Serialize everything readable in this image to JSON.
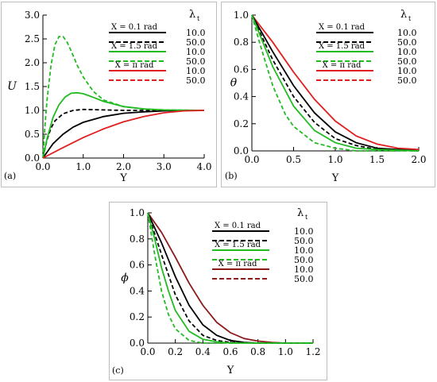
{
  "chart_data": [
    {
      "id": "a",
      "type": "line",
      "panel_label": "(a)",
      "xlabel": "Y",
      "ylabel": "U",
      "xlim": [
        0,
        4
      ],
      "ylim": [
        0,
        3
      ],
      "xticks": [
        "0.0",
        "1.0",
        "2.0",
        "3.0",
        "4.0"
      ],
      "yticks": [
        "0.0",
        "0.5",
        "1.0",
        "1.5",
        "2.0",
        "2.5",
        "3.0"
      ],
      "legend_header": "λ",
      "legend_header_sub": "t",
      "legend": [
        {
          "group": "X = 0.1 rad",
          "value": "10.0",
          "color": "#000000",
          "dash": "solid"
        },
        {
          "group": "",
          "value": "50.0",
          "color": "#000000",
          "dash": "dashed"
        },
        {
          "group": "X = 1.5 rad",
          "value": "10.0",
          "color": "#22bb22",
          "dash": "solid"
        },
        {
          "group": "",
          "value": "50.0",
          "color": "#22bb22",
          "dash": "dashed"
        },
        {
          "group": "X = π rad",
          "value": "10.0",
          "color": "#e02020",
          "dash": "solid"
        },
        {
          "group": "",
          "value": "50.0",
          "color": "#e02020",
          "dash": "dashed"
        }
      ],
      "series": [
        {
          "color": "#000000",
          "dash": "solid",
          "x": [
            0,
            0.25,
            0.5,
            0.75,
            1.0,
            1.5,
            2.0,
            2.5,
            3.0,
            3.5,
            4.0
          ],
          "y": [
            0,
            0.3,
            0.5,
            0.65,
            0.75,
            0.87,
            0.94,
            0.97,
            0.99,
            1.0,
            1.0
          ]
        },
        {
          "color": "#000000",
          "dash": "dashed",
          "x": [
            0,
            0.1,
            0.2,
            0.3,
            0.5,
            0.75,
            1.0,
            1.5,
            2.0,
            3.0,
            4.0
          ],
          "y": [
            0,
            0.38,
            0.63,
            0.78,
            0.93,
            1.0,
            1.02,
            1.01,
            1.0,
            1.0,
            1.0
          ]
        },
        {
          "color": "#22bb22",
          "dash": "solid",
          "x": [
            0,
            0.1,
            0.25,
            0.4,
            0.55,
            0.7,
            0.85,
            1.0,
            1.2,
            1.5,
            2.0,
            2.5,
            3.0,
            4.0
          ],
          "y": [
            0,
            0.4,
            0.85,
            1.12,
            1.28,
            1.36,
            1.37,
            1.35,
            1.29,
            1.19,
            1.08,
            1.03,
            1.01,
            1.0
          ]
        },
        {
          "color": "#22bb22",
          "dash": "dashed",
          "x": [
            0,
            0.05,
            0.1,
            0.2,
            0.3,
            0.4,
            0.5,
            0.6,
            0.7,
            0.85,
            1.0,
            1.25,
            1.5,
            2.0,
            2.5,
            3.0,
            4.0
          ],
          "y": [
            0,
            0.65,
            1.2,
            1.95,
            2.38,
            2.55,
            2.55,
            2.43,
            2.25,
            1.95,
            1.7,
            1.4,
            1.22,
            1.08,
            1.03,
            1.01,
            1.0
          ]
        },
        {
          "color": "#e02020",
          "dash": "solid",
          "x": [
            0,
            0.5,
            1.0,
            1.5,
            2.0,
            2.5,
            3.0,
            3.5,
            4.0
          ],
          "y": [
            0,
            0.22,
            0.43,
            0.61,
            0.76,
            0.87,
            0.95,
            0.99,
            1.0
          ]
        }
      ]
    },
    {
      "id": "b",
      "type": "line",
      "panel_label": "(b)",
      "xlabel": "Y",
      "ylabel": "θ",
      "xlim": [
        0,
        2
      ],
      "ylim": [
        0,
        1
      ],
      "xticks": [
        "0.0",
        "0.5",
        "1.0",
        "1.5",
        "2.0"
      ],
      "yticks": [
        "0.0",
        "0.2",
        "0.4",
        "0.6",
        "0.8",
        "1.0"
      ],
      "legend_header": "λ",
      "legend_header_sub": "t",
      "legend": [
        {
          "group": "X = 0.1 rad",
          "value": "10.0",
          "color": "#000000",
          "dash": "solid"
        },
        {
          "group": "",
          "value": "50.0",
          "color": "#000000",
          "dash": "dashed"
        },
        {
          "group": "X = 1.5 rad",
          "value": "10.0",
          "color": "#22bb22",
          "dash": "solid"
        },
        {
          "group": "",
          "value": "50.0",
          "color": "#22bb22",
          "dash": "dashed"
        },
        {
          "group": "X = π rad",
          "value": "10.0",
          "color": "#e02020",
          "dash": "solid"
        },
        {
          "group": "",
          "value": "50.0",
          "color": "#e02020",
          "dash": "dashed"
        }
      ],
      "series": [
        {
          "color": "#e02020",
          "dash": "solid",
          "x": [
            0,
            0.25,
            0.5,
            0.75,
            1.0,
            1.25,
            1.5,
            1.75,
            2.0
          ],
          "y": [
            1.0,
            0.8,
            0.58,
            0.38,
            0.22,
            0.11,
            0.05,
            0.02,
            0.01
          ]
        },
        {
          "color": "#000000",
          "dash": "solid",
          "x": [
            0,
            0.25,
            0.5,
            0.75,
            1.0,
            1.25,
            1.5,
            1.75,
            2.0
          ],
          "y": [
            1.0,
            0.73,
            0.48,
            0.28,
            0.14,
            0.06,
            0.02,
            0.01,
            0.0
          ]
        },
        {
          "color": "#000000",
          "dash": "dashed",
          "x": [
            0,
            0.25,
            0.5,
            0.75,
            1.0,
            1.25,
            1.5,
            2.0
          ],
          "y": [
            1.0,
            0.67,
            0.4,
            0.21,
            0.09,
            0.04,
            0.01,
            0.0
          ]
        },
        {
          "color": "#22bb22",
          "dash": "solid",
          "x": [
            0,
            0.25,
            0.5,
            0.75,
            1.0,
            1.25,
            1.5,
            2.0
          ],
          "y": [
            1.0,
            0.62,
            0.33,
            0.15,
            0.06,
            0.02,
            0.01,
            0.0
          ]
        },
        {
          "color": "#22bb22",
          "dash": "dashed",
          "x": [
            0,
            0.1,
            0.25,
            0.4,
            0.5,
            0.75,
            1.0,
            1.25,
            1.5,
            2.0
          ],
          "y": [
            1.0,
            0.78,
            0.48,
            0.27,
            0.18,
            0.06,
            0.02,
            0.0,
            0.0,
            0.0
          ]
        }
      ]
    },
    {
      "id": "c",
      "type": "line",
      "panel_label": "(c)",
      "xlabel": "Y",
      "ylabel": "ϕ",
      "xlim": [
        0,
        1.2
      ],
      "ylim": [
        0,
        1
      ],
      "xticks": [
        "0.0",
        "0.2",
        "0.4",
        "0.6",
        "0.8",
        "1.0",
        "1.2"
      ],
      "yticks": [
        "0.0",
        "0.2",
        "0.4",
        "0.6",
        "0.8",
        "1.0"
      ],
      "legend_header": "λ",
      "legend_header_sub": "t",
      "legend": [
        {
          "group": "X = 0.1 rad",
          "value": "10.0",
          "color": "#000000",
          "dash": "solid"
        },
        {
          "group": "",
          "value": "50.0",
          "color": "#000000",
          "dash": "dashed"
        },
        {
          "group": "X = 1.5 rad",
          "value": "10.0",
          "color": "#22bb22",
          "dash": "solid"
        },
        {
          "group": "",
          "value": "50.0",
          "color": "#22bb22",
          "dash": "dashed"
        },
        {
          "group": "X = π rad",
          "value": "10.0",
          "color": "#8b1a1a",
          "dash": "solid"
        },
        {
          "group": "",
          "value": "50.0",
          "color": "#8b1a1a",
          "dash": "dashed"
        }
      ],
      "series": [
        {
          "color": "#8b1a1a",
          "dash": "solid",
          "x": [
            0,
            0.1,
            0.2,
            0.3,
            0.4,
            0.5,
            0.6,
            0.7,
            0.8,
            0.9,
            1.0,
            1.1,
            1.2
          ],
          "y": [
            1.0,
            0.85,
            0.66,
            0.46,
            0.29,
            0.16,
            0.08,
            0.035,
            0.015,
            0.005,
            0.0,
            0.0,
            0.0
          ]
        },
        {
          "color": "#000000",
          "dash": "solid",
          "x": [
            0,
            0.1,
            0.2,
            0.3,
            0.4,
            0.5,
            0.6,
            0.7,
            0.8,
            1.0,
            1.2
          ],
          "y": [
            1.0,
            0.77,
            0.51,
            0.29,
            0.14,
            0.06,
            0.02,
            0.005,
            0.0,
            0.0,
            0.0
          ]
        },
        {
          "color": "#000000",
          "dash": "dashed",
          "x": [
            0,
            0.1,
            0.2,
            0.3,
            0.4,
            0.5,
            0.6,
            0.8,
            1.0,
            1.2
          ],
          "y": [
            1.0,
            0.68,
            0.37,
            0.17,
            0.06,
            0.02,
            0.005,
            0.0,
            0.0,
            0.0
          ]
        },
        {
          "color": "#22bb22",
          "dash": "solid",
          "x": [
            0,
            0.05,
            0.1,
            0.15,
            0.2,
            0.3,
            0.4,
            0.5,
            0.6,
            0.8,
            1.0,
            1.2
          ],
          "y": [
            1.0,
            0.8,
            0.58,
            0.4,
            0.25,
            0.09,
            0.03,
            0.01,
            0.0,
            0.0,
            0.0,
            0.0
          ]
        },
        {
          "color": "#22bb22",
          "dash": "dashed",
          "x": [
            0,
            0.05,
            0.1,
            0.15,
            0.2,
            0.3,
            0.4,
            0.5,
            0.6,
            0.8,
            1.0,
            1.2
          ],
          "y": [
            1.0,
            0.68,
            0.4,
            0.22,
            0.11,
            0.02,
            0.0,
            0.0,
            0.0,
            0.0,
            0.0,
            0.0
          ]
        }
      ]
    }
  ]
}
